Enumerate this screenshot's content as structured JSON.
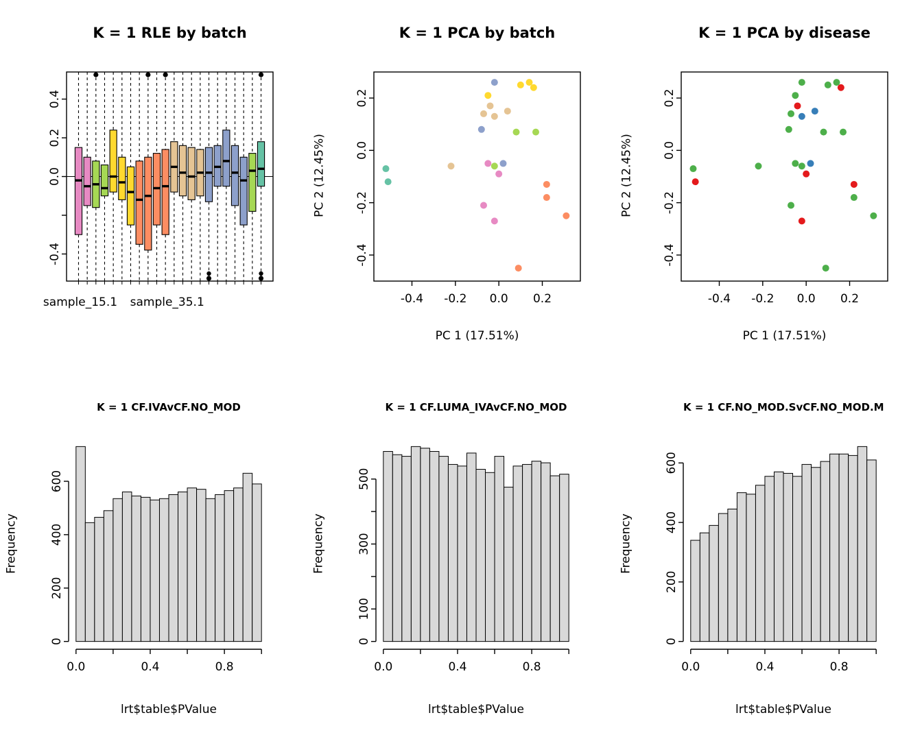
{
  "figure": {
    "background": "#ffffff",
    "text_color": "#000000"
  },
  "palettes": {
    "batch": [
      "#E78AC3",
      "#A6D854",
      "#FFD92F",
      "#FC8D62",
      "#E5C494",
      "#8DA0CB",
      "#66C2A5"
    ],
    "disease": [
      "#E41A1C",
      "#4DAF4A",
      "#377EB8"
    ]
  },
  "chart_data": [
    {
      "id": "rle-by-batch",
      "type": "boxplot",
      "title": "K = 1 RLE by batch",
      "ylim": [
        -0.5,
        0.5
      ],
      "hline": 0,
      "yticks": [
        {
          "v": -0.4,
          "label": "-0.4"
        },
        {
          "v": -0.2,
          "label": ""
        },
        {
          "v": 0,
          "label": "0.0"
        },
        {
          "v": 0.2,
          "label": "0.2"
        },
        {
          "v": 0.4,
          "label": "0.4"
        }
      ],
      "xtick_labels": [
        {
          "at": 1.2,
          "label": "sample_15.1"
        },
        {
          "at": 11.2,
          "label": "sample_35.1"
        }
      ],
      "boxes": [
        {
          "q1": -0.3,
          "median": -0.02,
          "q3": 0.15,
          "color": "#E78AC3"
        },
        {
          "q1": -0.15,
          "median": -0.05,
          "q3": 0.1,
          "color": "#E78AC3"
        },
        {
          "q1": -0.16,
          "median": -0.04,
          "q3": 0.08,
          "color": "#A6D854",
          "out_top": true
        },
        {
          "q1": -0.1,
          "median": -0.06,
          "q3": 0.06,
          "color": "#A6D854"
        },
        {
          "q1": -0.08,
          "median": 0.0,
          "q3": 0.24,
          "color": "#FFD92F"
        },
        {
          "q1": -0.12,
          "median": -0.03,
          "q3": 0.1,
          "color": "#FFD92F"
        },
        {
          "q1": -0.25,
          "median": -0.08,
          "q3": 0.05,
          "color": "#FFD92F"
        },
        {
          "q1": -0.35,
          "median": -0.12,
          "q3": 0.08,
          "color": "#FC8D62"
        },
        {
          "q1": -0.38,
          "median": -0.1,
          "q3": 0.1,
          "color": "#FC8D62",
          "out_top": true
        },
        {
          "q1": -0.25,
          "median": -0.06,
          "q3": 0.12,
          "color": "#FC8D62"
        },
        {
          "q1": -0.3,
          "median": -0.05,
          "q3": 0.14,
          "color": "#FC8D62",
          "out_top": true
        },
        {
          "q1": -0.08,
          "median": 0.05,
          "q3": 0.18,
          "color": "#E5C494"
        },
        {
          "q1": -0.1,
          "median": 0.02,
          "q3": 0.16,
          "color": "#E5C494"
        },
        {
          "q1": -0.12,
          "median": 0.0,
          "q3": 0.15,
          "color": "#E5C494"
        },
        {
          "q1": -0.1,
          "median": 0.02,
          "q3": 0.14,
          "color": "#E5C494"
        },
        {
          "q1": -0.13,
          "median": 0.02,
          "q3": 0.15,
          "color": "#8DA0CB",
          "out_bottom": true
        },
        {
          "q1": -0.05,
          "median": 0.05,
          "q3": 0.16,
          "color": "#8DA0CB"
        },
        {
          "q1": -0.05,
          "median": 0.08,
          "q3": 0.24,
          "color": "#8DA0CB"
        },
        {
          "q1": -0.15,
          "median": 0.02,
          "q3": 0.16,
          "color": "#8DA0CB"
        },
        {
          "q1": -0.25,
          "median": -0.02,
          "q3": 0.1,
          "color": "#8DA0CB"
        },
        {
          "q1": -0.18,
          "median": 0.03,
          "q3": 0.12,
          "color": "#A6D854"
        },
        {
          "q1": -0.05,
          "median": 0.04,
          "q3": 0.18,
          "color": "#66C2A5",
          "out_top": true,
          "out_bottom": true
        }
      ]
    },
    {
      "id": "pca-by-batch",
      "type": "scatter",
      "title": "K = 1 PCA by batch",
      "xlabel": "PC 1 (17.51%)",
      "ylabel": "PC 2 (12.45%)",
      "xlim": [
        -0.54,
        0.34
      ],
      "ylim": [
        -0.47,
        0.27
      ],
      "xticks": [
        {
          "v": -0.4,
          "label": "-0.4"
        },
        {
          "v": -0.2,
          "label": "-0.2"
        },
        {
          "v": 0,
          "label": "0.0"
        },
        {
          "v": 0.2,
          "label": "0.2"
        }
      ],
      "yticks": [
        {
          "v": 0.2,
          "label": "0.2"
        },
        {
          "v": 0,
          "label": "0.0"
        },
        {
          "v": -0.2,
          "label": "-0.2"
        },
        {
          "v": -0.4,
          "label": "-0.4"
        }
      ],
      "points": [
        {
          "x": -0.52,
          "y": -0.07,
          "c": "#66C2A5"
        },
        {
          "x": -0.51,
          "y": -0.12,
          "c": "#66C2A5"
        },
        {
          "x": -0.22,
          "y": -0.06,
          "c": "#E5C494"
        },
        {
          "x": -0.05,
          "y": 0.21,
          "c": "#FFD92F"
        },
        {
          "x": -0.02,
          "y": 0.26,
          "c": "#8DA0CB"
        },
        {
          "x": 0.1,
          "y": 0.25,
          "c": "#FFD92F"
        },
        {
          "x": 0.14,
          "y": 0.26,
          "c": "#FFD92F"
        },
        {
          "x": 0.16,
          "y": 0.24,
          "c": "#FFD92F"
        },
        {
          "x": -0.04,
          "y": 0.17,
          "c": "#E5C494"
        },
        {
          "x": -0.07,
          "y": 0.14,
          "c": "#E5C494"
        },
        {
          "x": -0.02,
          "y": 0.13,
          "c": "#E5C494"
        },
        {
          "x": 0.04,
          "y": 0.15,
          "c": "#E5C494"
        },
        {
          "x": -0.08,
          "y": 0.08,
          "c": "#8DA0CB"
        },
        {
          "x": 0.08,
          "y": 0.07,
          "c": "#A6D854"
        },
        {
          "x": 0.17,
          "y": 0.07,
          "c": "#A6D854"
        },
        {
          "x": -0.05,
          "y": -0.05,
          "c": "#E78AC3"
        },
        {
          "x": -0.02,
          "y": -0.06,
          "c": "#A6D854"
        },
        {
          "x": 0.02,
          "y": -0.05,
          "c": "#8DA0CB"
        },
        {
          "x": 0.0,
          "y": -0.09,
          "c": "#E78AC3"
        },
        {
          "x": -0.07,
          "y": -0.21,
          "c": "#E78AC3"
        },
        {
          "x": -0.02,
          "y": -0.27,
          "c": "#E78AC3"
        },
        {
          "x": 0.22,
          "y": -0.13,
          "c": "#FC8D62"
        },
        {
          "x": 0.22,
          "y": -0.18,
          "c": "#FC8D62"
        },
        {
          "x": 0.31,
          "y": -0.25,
          "c": "#FC8D62"
        },
        {
          "x": 0.09,
          "y": -0.45,
          "c": "#FC8D62"
        }
      ]
    },
    {
      "id": "pca-by-disease",
      "type": "scatter",
      "title": "K = 1 PCA by disease",
      "xlabel": "PC 1 (17.51%)",
      "ylabel": "PC 2 (12.45%)",
      "xlim": [
        -0.54,
        0.34
      ],
      "ylim": [
        -0.47,
        0.27
      ],
      "xticks": [
        {
          "v": -0.4,
          "label": "-0.4"
        },
        {
          "v": -0.2,
          "label": "-0.2"
        },
        {
          "v": 0,
          "label": "0.0"
        },
        {
          "v": 0.2,
          "label": "0.2"
        }
      ],
      "yticks": [
        {
          "v": 0.2,
          "label": "0.2"
        },
        {
          "v": 0,
          "label": "0.0"
        },
        {
          "v": -0.2,
          "label": "-0.2"
        },
        {
          "v": -0.4,
          "label": "-0.4"
        }
      ],
      "points": [
        {
          "x": -0.52,
          "y": -0.07,
          "c": "#4DAF4A"
        },
        {
          "x": -0.51,
          "y": -0.12,
          "c": "#E41A1C"
        },
        {
          "x": -0.22,
          "y": -0.06,
          "c": "#4DAF4A"
        },
        {
          "x": -0.05,
          "y": 0.21,
          "c": "#4DAF4A"
        },
        {
          "x": -0.02,
          "y": 0.26,
          "c": "#4DAF4A"
        },
        {
          "x": 0.1,
          "y": 0.25,
          "c": "#4DAF4A"
        },
        {
          "x": 0.14,
          "y": 0.26,
          "c": "#4DAF4A"
        },
        {
          "x": 0.16,
          "y": 0.24,
          "c": "#E41A1C"
        },
        {
          "x": -0.04,
          "y": 0.17,
          "c": "#E41A1C"
        },
        {
          "x": -0.07,
          "y": 0.14,
          "c": "#4DAF4A"
        },
        {
          "x": -0.02,
          "y": 0.13,
          "c": "#377EB8"
        },
        {
          "x": 0.04,
          "y": 0.15,
          "c": "#377EB8"
        },
        {
          "x": -0.08,
          "y": 0.08,
          "c": "#4DAF4A"
        },
        {
          "x": 0.08,
          "y": 0.07,
          "c": "#4DAF4A"
        },
        {
          "x": 0.17,
          "y": 0.07,
          "c": "#4DAF4A"
        },
        {
          "x": -0.05,
          "y": -0.05,
          "c": "#4DAF4A"
        },
        {
          "x": -0.02,
          "y": -0.06,
          "c": "#4DAF4A"
        },
        {
          "x": 0.02,
          "y": -0.05,
          "c": "#377EB8"
        },
        {
          "x": 0.0,
          "y": -0.09,
          "c": "#E41A1C"
        },
        {
          "x": -0.07,
          "y": -0.21,
          "c": "#4DAF4A"
        },
        {
          "x": -0.02,
          "y": -0.27,
          "c": "#E41A1C"
        },
        {
          "x": 0.22,
          "y": -0.13,
          "c": "#E41A1C"
        },
        {
          "x": 0.22,
          "y": -0.18,
          "c": "#4DAF4A"
        },
        {
          "x": 0.31,
          "y": -0.25,
          "c": "#4DAF4A"
        },
        {
          "x": 0.09,
          "y": -0.45,
          "c": "#4DAF4A"
        }
      ]
    },
    {
      "id": "hist-cf-iva",
      "type": "histogram",
      "title": "K = 1 CF.IVAvCF.NO_MOD",
      "xlabel": "lrt$table$PValue",
      "ylabel": "Frequency",
      "bar_fill": "#d9d9d9",
      "bin_start": 0,
      "bin_width": 0.05,
      "xlim": [
        0,
        1
      ],
      "ylim": [
        0,
        730
      ],
      "counts": [
        730,
        445,
        465,
        490,
        535,
        560,
        545,
        540,
        530,
        535,
        550,
        560,
        575,
        570,
        535,
        550,
        565,
        575,
        630,
        590
      ],
      "yticks": [
        {
          "v": 0,
          "label": "0"
        },
        {
          "v": 200,
          "label": "200"
        },
        {
          "v": 400,
          "label": "400"
        },
        {
          "v": 600,
          "label": "600"
        }
      ],
      "xticks": [
        {
          "v": 0,
          "label": "0.0"
        },
        {
          "v": 0.2,
          "label": ""
        },
        {
          "v": 0.4,
          "label": "0.4"
        },
        {
          "v": 0.6,
          "label": ""
        },
        {
          "v": 0.8,
          "label": "0.8"
        },
        {
          "v": 1,
          "label": ""
        }
      ]
    },
    {
      "id": "hist-cf-luma-iva",
      "type": "histogram",
      "title": "K = 1 CF.LUMA_IVAvCF.NO_MOD",
      "xlabel": "lrt$table$PValue",
      "ylabel": "Frequency",
      "bar_fill": "#d9d9d9",
      "bin_start": 0,
      "bin_width": 0.05,
      "xlim": [
        0,
        1
      ],
      "ylim": [
        0,
        600
      ],
      "counts": [
        585,
        575,
        570,
        600,
        595,
        585,
        570,
        545,
        540,
        580,
        530,
        520,
        570,
        475,
        540,
        545,
        555,
        550,
        510,
        515
      ],
      "yticks": [
        {
          "v": 0,
          "label": "0"
        },
        {
          "v": 100,
          "label": "100"
        },
        {
          "v": 200,
          "label": ""
        },
        {
          "v": 300,
          "label": "300"
        },
        {
          "v": 400,
          "label": ""
        },
        {
          "v": 500,
          "label": "500"
        }
      ],
      "xticks": [
        {
          "v": 0,
          "label": "0.0"
        },
        {
          "v": 0.2,
          "label": ""
        },
        {
          "v": 0.4,
          "label": "0.4"
        },
        {
          "v": 0.6,
          "label": ""
        },
        {
          "v": 0.8,
          "label": "0.8"
        },
        {
          "v": 1,
          "label": ""
        }
      ]
    },
    {
      "id": "hist-cf-no-mod",
      "type": "histogram",
      "title": "K = 1 CF.NO_MOD.SvCF.NO_MOD.M",
      "xlabel": "lrt$table$PValue",
      "ylabel": "Frequency",
      "bar_fill": "#d9d9d9",
      "bin_start": 0,
      "bin_width": 0.05,
      "xlim": [
        0,
        1
      ],
      "ylim": [
        0,
        655
      ],
      "counts": [
        340,
        365,
        390,
        430,
        445,
        500,
        495,
        525,
        555,
        570,
        565,
        555,
        595,
        585,
        605,
        630,
        630,
        625,
        655,
        610
      ],
      "yticks": [
        {
          "v": 0,
          "label": "0"
        },
        {
          "v": 200,
          "label": "200"
        },
        {
          "v": 400,
          "label": "400"
        },
        {
          "v": 600,
          "label": "600"
        }
      ],
      "xticks": [
        {
          "v": 0,
          "label": "0.0"
        },
        {
          "v": 0.2,
          "label": ""
        },
        {
          "v": 0.4,
          "label": "0.4"
        },
        {
          "v": 0.6,
          "label": ""
        },
        {
          "v": 0.8,
          "label": "0.8"
        },
        {
          "v": 1,
          "label": ""
        }
      ]
    }
  ]
}
